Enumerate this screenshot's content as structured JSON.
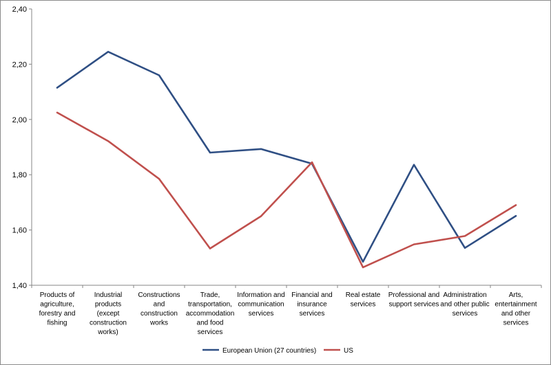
{
  "chart_data": {
    "type": "line",
    "title": "",
    "xlabel": "",
    "ylabel": "",
    "ylim": [
      1.4,
      2.4
    ],
    "yticks": [
      "1,40",
      "1,60",
      "1,80",
      "2,00",
      "2,20",
      "2,40"
    ],
    "grid": false,
    "legend_position": "bottom",
    "categories": [
      [
        "Products of",
        "agriculture,",
        "forestry and",
        "fishing"
      ],
      [
        "Industrial",
        "products",
        "(except",
        "construction",
        "works)"
      ],
      [
        "Constructions",
        "and",
        "construction",
        "works"
      ],
      [
        "Trade,",
        "transportation,",
        "accommodation",
        "and food",
        "services"
      ],
      [
        "Information and",
        "communication",
        "services"
      ],
      [
        "Financial and",
        "insurance",
        "services"
      ],
      [
        "Real estate",
        "services"
      ],
      [
        "Professional and",
        "support services"
      ],
      [
        "Administration",
        "and other public",
        "services"
      ],
      [
        "Arts,",
        "entertainment",
        "and other",
        "services"
      ]
    ],
    "series": [
      {
        "name": "European Union (27 countries)",
        "color": "#2f4f84",
        "values": [
          2.115,
          2.245,
          2.16,
          1.88,
          1.893,
          1.84,
          1.485,
          1.836,
          1.535,
          1.651
        ]
      },
      {
        "name": "US",
        "color": "#c0504d",
        "values": [
          2.025,
          1.922,
          1.785,
          1.533,
          1.65,
          1.845,
          1.465,
          1.548,
          1.578,
          1.69
        ]
      }
    ]
  }
}
